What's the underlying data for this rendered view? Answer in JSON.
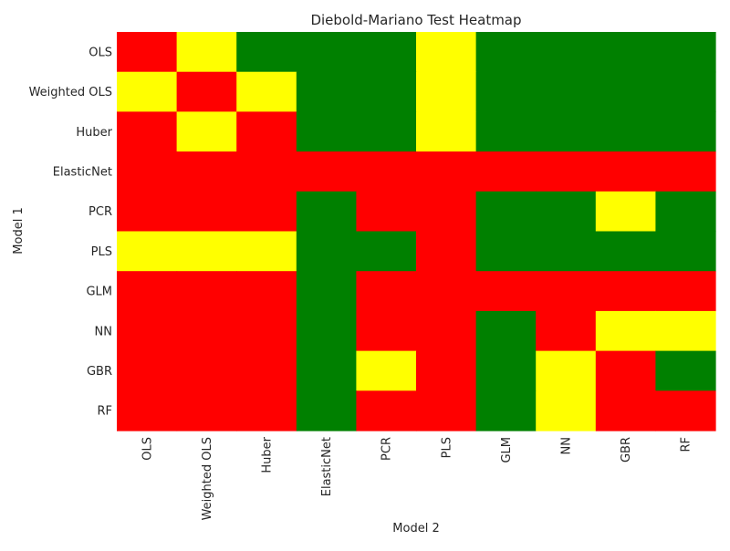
{
  "chart_data": {
    "type": "heatmap",
    "title": "Diebold-Mariano Test Heatmap",
    "xlabel": "Model 2",
    "ylabel": "Model 1",
    "x_categories": [
      "OLS",
      "Weighted OLS",
      "Huber",
      "ElasticNet",
      "PCR",
      "PLS",
      "GLM",
      "NN",
      "GBR",
      "RF"
    ],
    "y_categories": [
      "OLS",
      "Weighted OLS",
      "Huber",
      "ElasticNet",
      "PCR",
      "PLS",
      "GLM",
      "NN",
      "GBR",
      "RF"
    ],
    "colors": {
      "red": "#ff0000",
      "yellow": "#ffff00",
      "green": "#008000"
    },
    "cells": [
      [
        "red",
        "yellow",
        "green",
        "green",
        "green",
        "yellow",
        "green",
        "green",
        "green",
        "green"
      ],
      [
        "yellow",
        "red",
        "yellow",
        "green",
        "green",
        "yellow",
        "green",
        "green",
        "green",
        "green"
      ],
      [
        "red",
        "yellow",
        "red",
        "green",
        "green",
        "yellow",
        "green",
        "green",
        "green",
        "green"
      ],
      [
        "red",
        "red",
        "red",
        "red",
        "red",
        "red",
        "red",
        "red",
        "red",
        "red"
      ],
      [
        "red",
        "red",
        "red",
        "green",
        "red",
        "red",
        "green",
        "green",
        "yellow",
        "green"
      ],
      [
        "yellow",
        "yellow",
        "yellow",
        "green",
        "green",
        "red",
        "green",
        "green",
        "green",
        "green"
      ],
      [
        "red",
        "red",
        "red",
        "green",
        "red",
        "red",
        "red",
        "red",
        "red",
        "red"
      ],
      [
        "red",
        "red",
        "red",
        "green",
        "red",
        "red",
        "green",
        "red",
        "yellow",
        "yellow"
      ],
      [
        "red",
        "red",
        "red",
        "green",
        "yellow",
        "red",
        "green",
        "yellow",
        "red",
        "green"
      ],
      [
        "red",
        "red",
        "red",
        "green",
        "red",
        "red",
        "green",
        "yellow",
        "red",
        "red"
      ]
    ],
    "grid": false,
    "legend": "none"
  }
}
